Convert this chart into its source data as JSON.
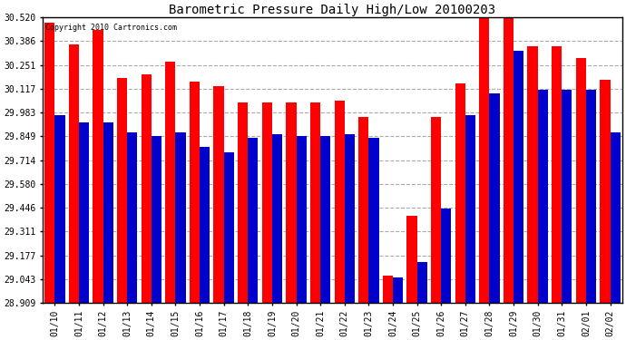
{
  "title": "Barometric Pressure Daily High/Low 20100203",
  "copyright": "Copyright 2010 Cartronics.com",
  "categories": [
    "01/10",
    "01/11",
    "01/12",
    "01/13",
    "01/14",
    "01/15",
    "01/16",
    "01/17",
    "01/18",
    "01/19",
    "01/20",
    "01/21",
    "01/22",
    "01/23",
    "01/24",
    "01/25",
    "01/26",
    "01/27",
    "01/28",
    "01/29",
    "01/30",
    "01/31",
    "02/01",
    "02/02"
  ],
  "highs": [
    30.49,
    30.37,
    30.45,
    30.18,
    30.2,
    30.27,
    30.16,
    30.13,
    30.04,
    30.04,
    30.04,
    30.04,
    30.05,
    29.96,
    29.06,
    29.4,
    29.96,
    30.15,
    30.54,
    30.54,
    30.36,
    30.36,
    30.29,
    30.17
  ],
  "lows": [
    29.97,
    29.93,
    29.93,
    29.87,
    29.85,
    29.87,
    29.79,
    29.76,
    29.84,
    29.86,
    29.85,
    29.85,
    29.86,
    29.84,
    29.05,
    29.14,
    29.44,
    29.97,
    30.09,
    30.33,
    30.11,
    30.11,
    30.11,
    29.87
  ],
  "high_color": "#ff0000",
  "low_color": "#0000cc",
  "bg_color": "#ffffff",
  "grid_color": "#aaaaaa",
  "yticks": [
    28.909,
    29.043,
    29.177,
    29.311,
    29.446,
    29.58,
    29.714,
    29.849,
    29.983,
    30.117,
    30.251,
    30.386,
    30.52
  ],
  "ymin": 28.909,
  "ymax": 30.52,
  "bar_width": 0.42
}
